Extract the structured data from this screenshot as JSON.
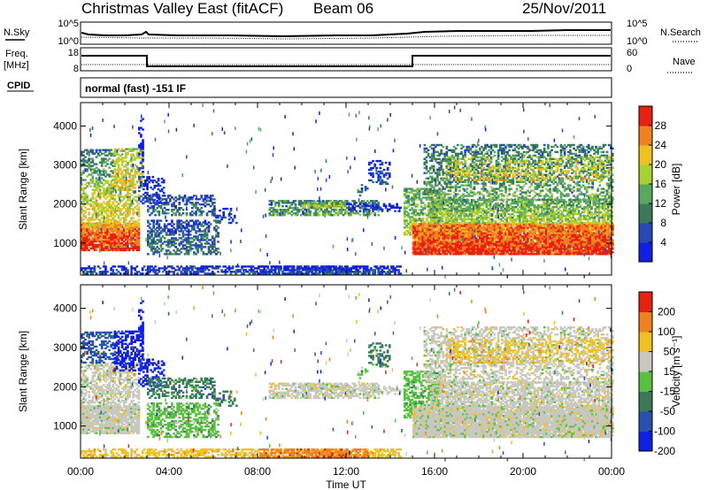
{
  "header": {
    "title": "Christmas Valley East (fitACF)",
    "beam": "Beam 06",
    "date": "25/Nov/2011"
  },
  "status_panels": {
    "nsky_label": "N.Sky",
    "nsearch_label": "N.Search",
    "freq_label": "Freq.",
    "freq_unit": "[MHz]",
    "nave_label": "Nave",
    "cpid_label": "CPID",
    "cpid_text": "normal (fast) -151 IF",
    "noise_left_ticks": [
      "10^5",
      "10^0"
    ],
    "noise_right_ticks": [
      "10^5",
      "10^0"
    ],
    "freq_left_ticks": [
      "18",
      "8"
    ],
    "freq_right_ticks": [
      "60",
      "0"
    ]
  },
  "chart_data": [
    {
      "type": "heatmap",
      "name": "power",
      "ylabel": "Slant Range [km]",
      "xlabel": "Time UT",
      "ylim": [
        180,
        4600
      ],
      "xlim": [
        0,
        24
      ],
      "yticks": [
        1000,
        2000,
        3000,
        4000
      ],
      "xticks": [
        "00:00",
        "04:00",
        "08:00",
        "12:00",
        "16:00",
        "20:00",
        "00:00"
      ],
      "colorbar": {
        "label": "Power [dB]",
        "ticks": [
          "4",
          "8",
          "12",
          "16",
          "20",
          "24",
          "28"
        ],
        "colors": [
          "#1020e0",
          "#2848b8",
          "#3a7a5a",
          "#5aa860",
          "#a8d030",
          "#f0c020",
          "#f08020",
          "#e82010"
        ]
      }
    },
    {
      "type": "heatmap",
      "name": "velocity",
      "ylabel": "Slant Range [km]",
      "xlabel": "Time UT",
      "ylim": [
        180,
        4600
      ],
      "xlim": [
        0,
        24
      ],
      "yticks": [
        1000,
        2000,
        3000,
        4000
      ],
      "xticks": [
        "00:00",
        "04:00",
        "08:00",
        "12:00",
        "16:00",
        "20:00",
        "00:00"
      ],
      "colorbar": {
        "label": "Velocity [m s⁻¹]",
        "ticks": [
          "200",
          "100",
          "50",
          "15",
          "-15",
          "-50",
          "-100",
          "-200"
        ],
        "colors": [
          "#1020e0",
          "#2850b0",
          "#3a7a5a",
          "#58c040",
          "#c8c8c0",
          "#f0c020",
          "#f08020",
          "#e82010"
        ]
      }
    }
  ]
}
